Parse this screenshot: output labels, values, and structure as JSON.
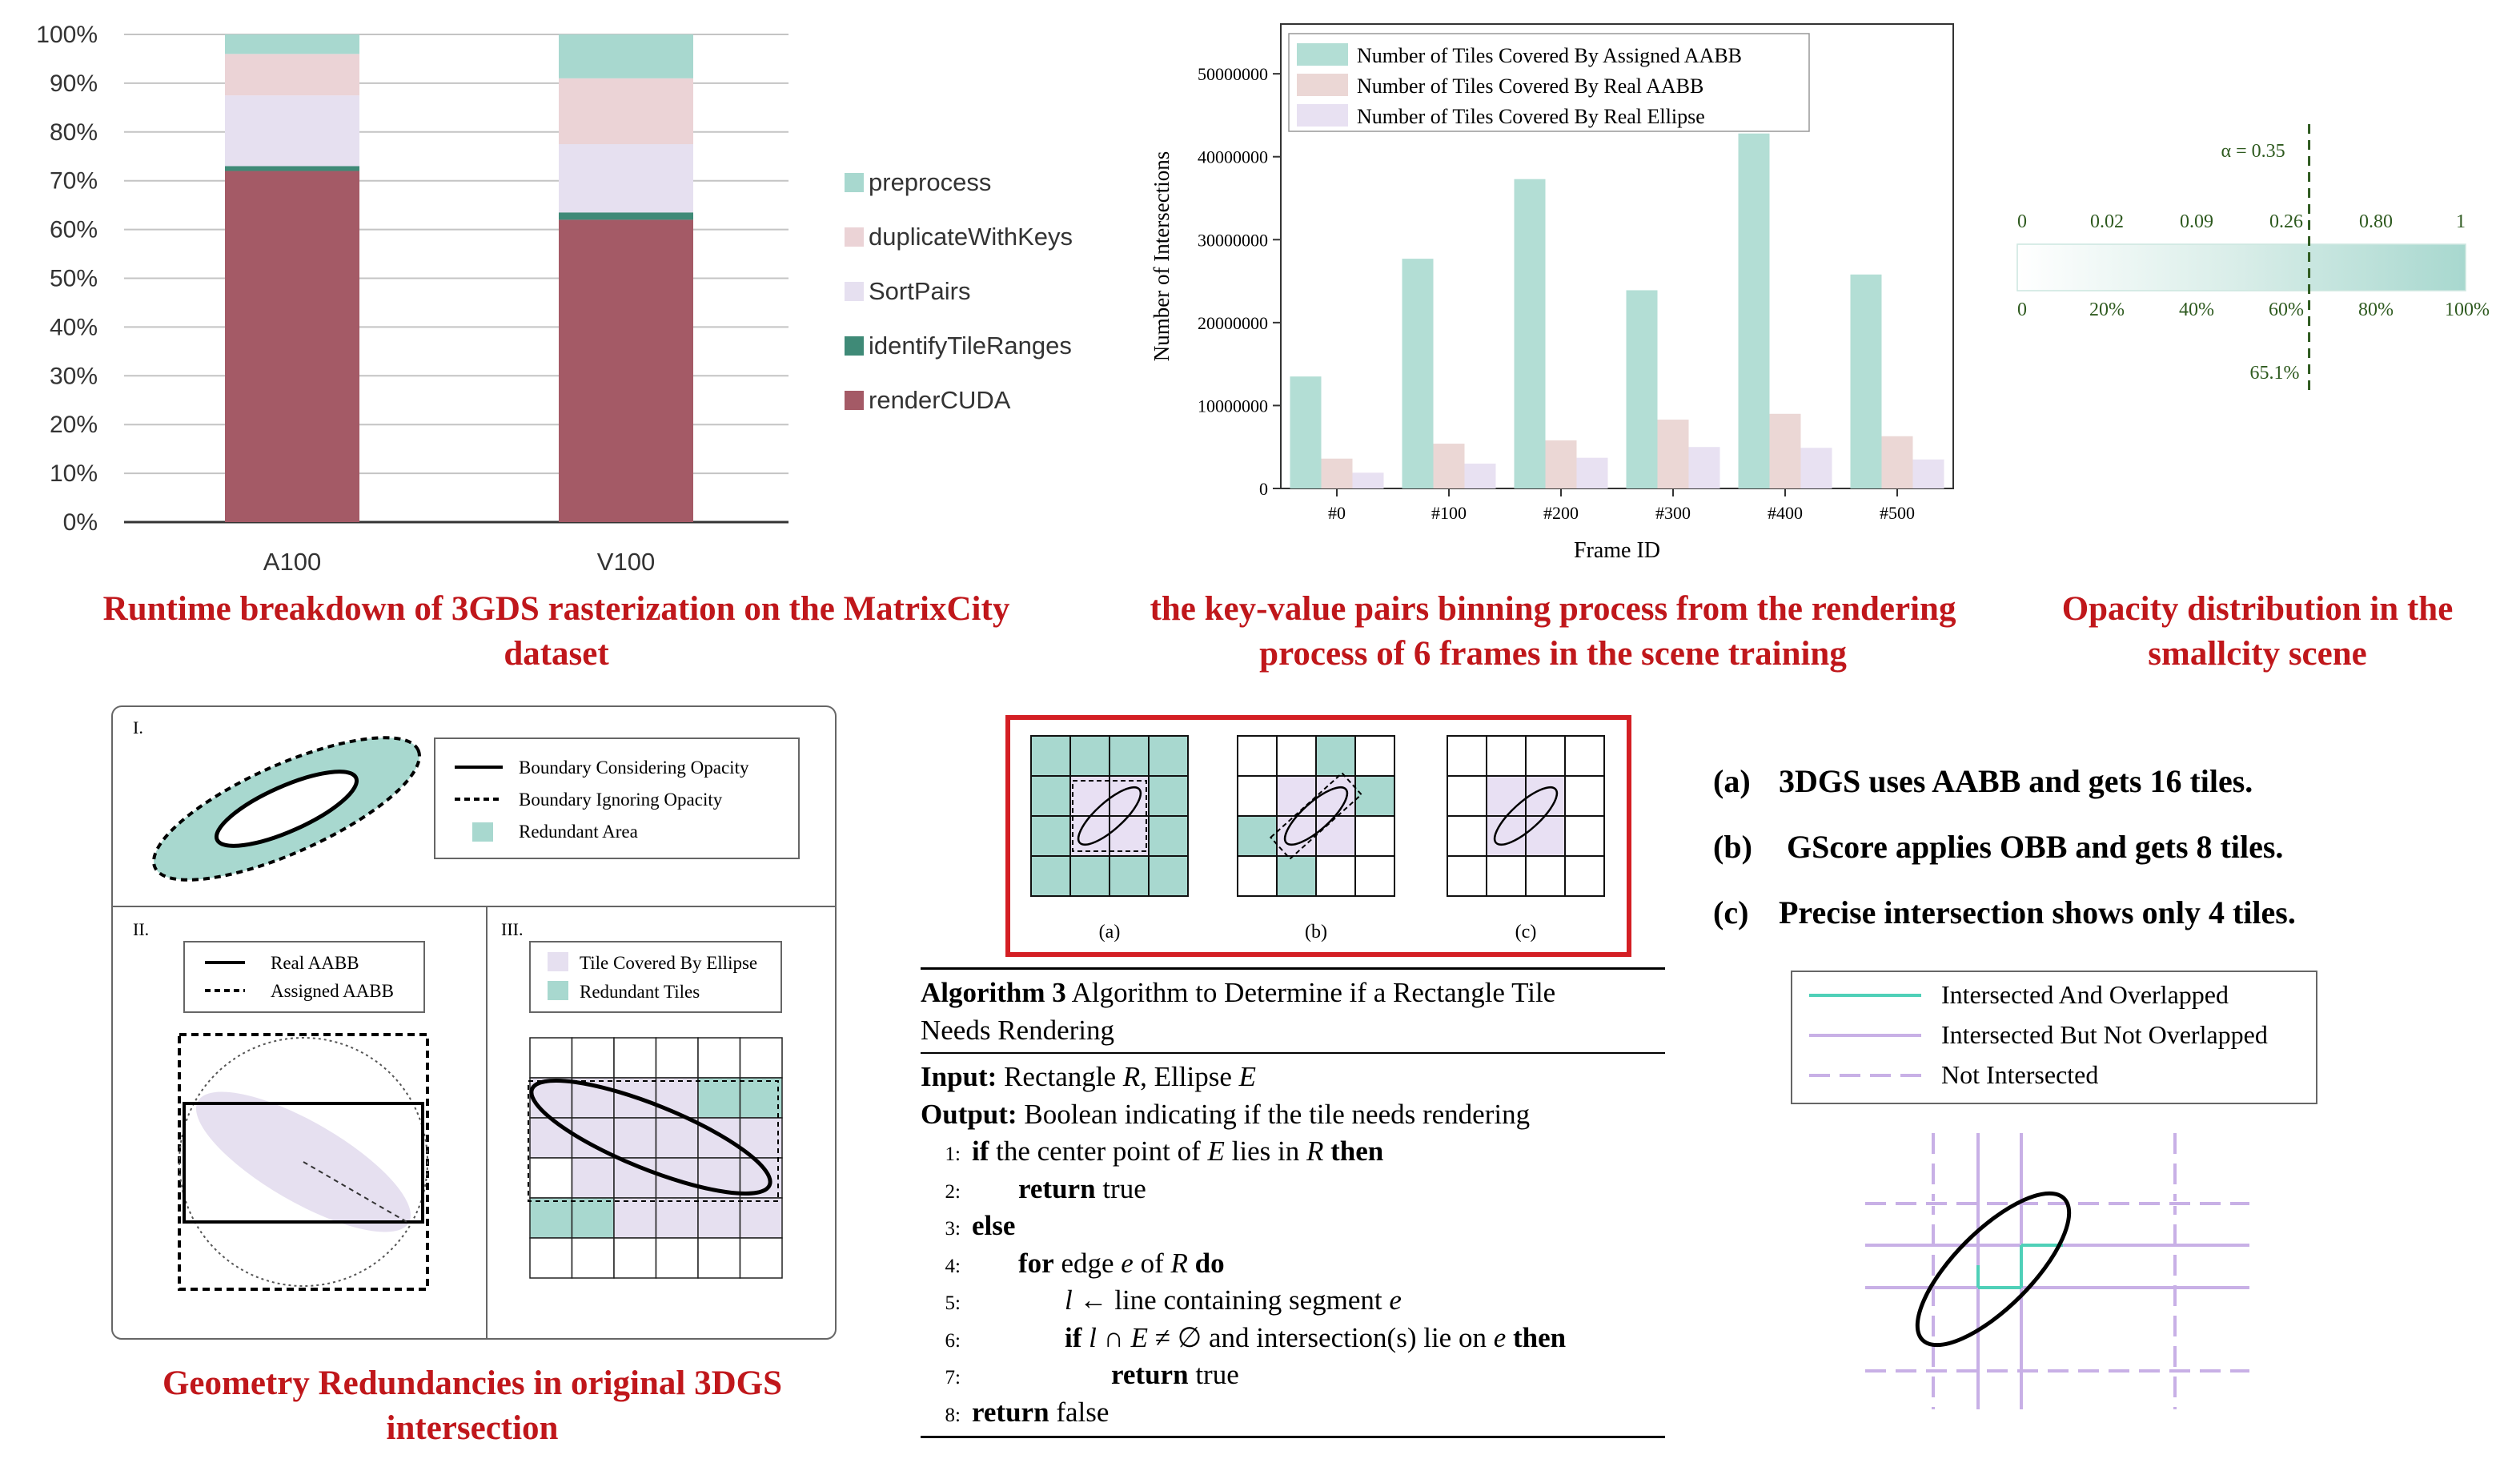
{
  "runtime_chart": {
    "caption": "Runtime breakdown of 3GDS rasterization on the MatrixCity dataset",
    "legend": [
      "preprocess",
      "duplicateWithKeys",
      "SortPairs",
      "identifyTileRanges",
      "renderCUDA"
    ]
  },
  "binning_chart": {
    "caption": "the key-value pairs binning process from the rendering process of 6 frames in the scene training",
    "ylabel": "Number of Intersections",
    "xlabel": "Frame ID"
  },
  "opacity_chart": {
    "caption": "Opacity distribution in the smallcity scene",
    "alpha_label": "α = 0.35",
    "top_ticks": [
      "0",
      "0.02",
      "0.09",
      "0.26",
      "0.80",
      "1"
    ],
    "bottom_ticks": [
      "0",
      "20%",
      "40%",
      "60%",
      "80%",
      "100%"
    ],
    "marker_label": "65.1%",
    "marker_value": 0.651
  },
  "chart_data": [
    {
      "type": "bar",
      "stacked": true,
      "categories": [
        "A100",
        "V100"
      ],
      "series": [
        {
          "name": "renderCUDA",
          "values": [
            72,
            62
          ]
        },
        {
          "name": "identifyTileRanges",
          "values": [
            1,
            1.5
          ]
        },
        {
          "name": "SortPairs",
          "values": [
            14.5,
            14
          ]
        },
        {
          "name": "duplicateWithKeys",
          "values": [
            8.5,
            13.5
          ]
        },
        {
          "name": "preprocess",
          "values": [
            4,
            9
          ]
        }
      ],
      "ylim": [
        0,
        100
      ],
      "yticks": [
        "0%",
        "10%",
        "20%",
        "30%",
        "40%",
        "50%",
        "60%",
        "70%",
        "80%",
        "90%",
        "100%"
      ],
      "legend_position": "right",
      "grid": true
    },
    {
      "type": "bar",
      "categories": [
        "#0",
        "#100",
        "#200",
        "#300",
        "#400",
        "#500"
      ],
      "series": [
        {
          "name": "Number of Tiles Covered By Assigned AABB",
          "values": [
            13500000,
            27700000,
            37300000,
            23900000,
            42800000,
            25800000
          ]
        },
        {
          "name": "Number of Tiles Covered By Real AABB",
          "values": [
            3600000,
            5400000,
            5800000,
            8300000,
            9000000,
            6300000
          ]
        },
        {
          "name": "Number of Tiles Covered By Real Ellipse",
          "values": [
            1900000,
            3000000,
            3700000,
            5000000,
            4900000,
            3500000
          ]
        }
      ],
      "ylim": [
        0,
        56000000
      ],
      "yticks": [
        "0",
        "10000000",
        "20000000",
        "30000000",
        "40000000",
        "50000000"
      ],
      "xlabel": "Frame ID",
      "ylabel": "Number of Intersections",
      "legend_position": "top-left"
    }
  ],
  "geometry_figure": {
    "caption": "Geometry Redundancies in original 3DGS intersection",
    "panel1": {
      "numeral": "I.",
      "legend": [
        "Boundary Considering Opacity",
        "Boundary Ignoring Opacity",
        "Redundant Area"
      ]
    },
    "panel2": {
      "numeral": "II.",
      "legend": [
        "Real AABB",
        "Assigned AABB"
      ]
    },
    "panel3": {
      "numeral": "III.",
      "legend": [
        "Tile Covered By Ellipse",
        "Redundant Tiles"
      ]
    }
  },
  "tiles_figure": {
    "labels": [
      "(a)",
      "(b)",
      "(c)"
    ]
  },
  "algorithm": {
    "title_bold": "Algorithm 3",
    "title_rest": " Algorithm to Determine if a Rectangle Tile",
    "title_line2": "Needs Rendering",
    "input_label": "Input:",
    "input_text": " Rectangle ",
    "input_r": "R",
    "input_sep": ", Ellipse ",
    "input_e": "E",
    "output_label": "Output:",
    "output_text": " Boolean indicating if the tile needs rendering",
    "lines": [
      {
        "num": "1:",
        "kw1": "if",
        "t1": " the center point of ",
        "i1": "E",
        "t2": " lies in ",
        "i2": "R",
        "kw2": " then"
      },
      {
        "num": "2:",
        "kw1": "return",
        "t1": " true"
      },
      {
        "num": "3:",
        "kw1": "else"
      },
      {
        "num": "4:",
        "kw1": "for",
        "t1": " edge ",
        "i1": "e",
        "t2": " of ",
        "i2": "R",
        "kw2": " do"
      },
      {
        "num": "5:",
        "i1": "l",
        "t1": " ← line containing segment ",
        "i2": "e"
      },
      {
        "num": "6:",
        "kw1": "if",
        "i1": " l",
        "t1": " ∩ ",
        "i2": "E",
        "t2": " ≠ ∅ and intersection(s) lie on ",
        "i3": "e",
        "kw2": " then"
      },
      {
        "num": "7:",
        "kw1": "return",
        "t1": " true"
      },
      {
        "num": "8:",
        "kw1": "return",
        "t1": " false"
      }
    ]
  },
  "gscore_notes": {
    "a_label": "(a)",
    "a_text": "3DGS uses AABB and gets 16 tiles.",
    "b_label": "(b)",
    "b_text": " GScore applies OBB and gets 8 tiles.",
    "c_label": "(c)",
    "c_text": "Precise intersection shows only 4 tiles."
  },
  "intersection_figure": {
    "legend": [
      "Intersected And Overlapped",
      "Intersected But Not Overlapped",
      "Not Intersected"
    ]
  },
  "colors": {
    "teal": "#a8d8cf",
    "pink": "#ebd3d6",
    "lavender": "#e6e0f0",
    "dark_teal": "#3f8a77",
    "maroon": "#a45a66",
    "caption_red": "#c0171b",
    "bar_teal": "#b3ded5",
    "bar_pink": "#ebd7d5",
    "bar_lav": "#e8e1f2",
    "tile_purple": "#e8e0f3",
    "line_teal": "#4fd0b8",
    "line_purple": "#c8b0e6"
  }
}
